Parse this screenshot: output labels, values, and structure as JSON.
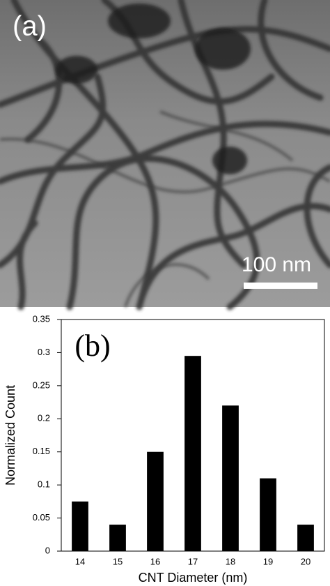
{
  "image": {
    "panel_label": "(a)",
    "scale_bar": "100 nm"
  },
  "chart_data": {
    "type": "bar",
    "panel_label": "(b)",
    "x_label": "CNT Diameter (nm)",
    "y_label": "Normalized Count",
    "categories": [
      "14",
      "15",
      "16",
      "17",
      "18",
      "19",
      "20"
    ],
    "values": [
      0.075,
      0.04,
      0.15,
      0.295,
      0.22,
      0.11,
      0.04
    ],
    "color": "#000000",
    "ylim": [
      0,
      0.35
    ],
    "yticks": [
      0,
      0.05,
      0.1,
      0.15,
      0.2,
      0.25,
      0.3,
      0.35
    ],
    "grid": false
  }
}
